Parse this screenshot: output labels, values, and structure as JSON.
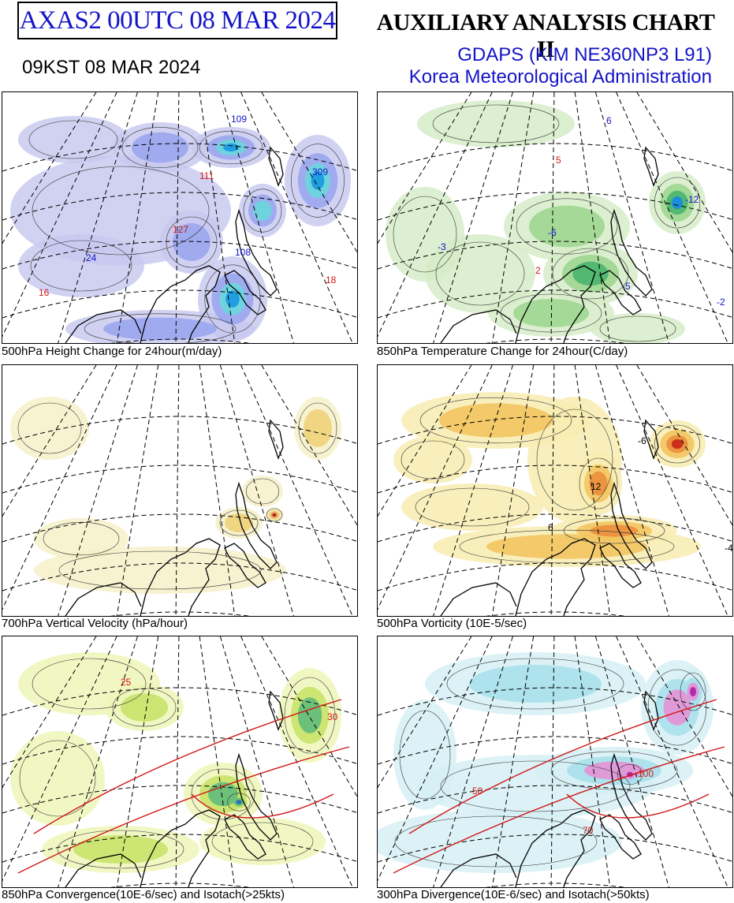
{
  "header": {
    "product": "AXAS2  00UTC 08 MAR 2024",
    "local_time": "09KST 08 MAR 2024",
    "chart_title": "AUXILIARY ANALYSIS CHART II",
    "model": "GDAPS (KIM NE360NP3 L91)",
    "agency": "Korea Meteorological Administration"
  },
  "panels": [
    {
      "id": "height-change",
      "caption": "500hPa Height Change for 24hour(m/day)",
      "palette": [
        "#c9c9f0",
        "#9aa6ee",
        "#6fd3df",
        "#1f9fe0"
      ],
      "labels": [
        {
          "text": "109",
          "color": "#1414c8"
        },
        {
          "text": "309",
          "color": "#1414c8"
        },
        {
          "text": "108",
          "color": "#1414c8"
        },
        {
          "text": "111",
          "color": "#d01818"
        },
        {
          "text": "127",
          "color": "#d01818"
        },
        {
          "text": "16",
          "color": "#d01818"
        },
        {
          "text": "18",
          "color": "#d01818"
        },
        {
          "text": "24",
          "color": "#1414c8"
        }
      ]
    },
    {
      "id": "temp-change",
      "caption": "850hPa Temperature Change for 24hour(C/day)",
      "palette": [
        "#d6ecc8",
        "#9fd690",
        "#52b872",
        "#1a8fd8"
      ],
      "labels": [
        {
          "text": "6",
          "color": "#1414c8"
        },
        {
          "text": "-6",
          "color": "#1414c8"
        },
        {
          "text": "-12",
          "color": "#1414c8"
        },
        {
          "text": "5",
          "color": "#d01818"
        },
        {
          "text": "2",
          "color": "#d01818"
        },
        {
          "text": "-3",
          "color": "#1414c8"
        },
        {
          "text": "-5",
          "color": "#1414c8"
        },
        {
          "text": "-2",
          "color": "#1414c8"
        }
      ]
    },
    {
      "id": "vertical-velocity",
      "caption": "700hPa Vertical Velocity (hPa/hour)",
      "palette": [
        "#f6f0c8",
        "#eed27a",
        "#e59a5a",
        "#b81c1c"
      ],
      "labels": []
    },
    {
      "id": "vorticity",
      "caption": "500hPa Vorticity (10E-5/sec)",
      "palette": [
        "#f8ecb0",
        "#f2c460",
        "#ec9440",
        "#c8301a"
      ],
      "labels": [
        {
          "text": "12",
          "color": "#000000"
        },
        {
          "text": "-6",
          "color": "#000000"
        },
        {
          "text": "6",
          "color": "#000000"
        },
        {
          "text": "-4",
          "color": "#000000"
        }
      ]
    },
    {
      "id": "convergence",
      "caption": "850hPa Convergence(10E-6/sec) and Isotach(>25kts)",
      "palette": [
        "#eef6b8",
        "#c8e26a",
        "#6cc07a",
        "#2d6fb8"
      ],
      "labels": [
        {
          "text": "25",
          "color": "#d01818"
        },
        {
          "text": "30",
          "color": "#d01818"
        }
      ]
    },
    {
      "id": "divergence",
      "caption": "300hPa Divergence(10E-6/sec) and Isotach(>50kts)",
      "palette": [
        "#d6f0f4",
        "#a8e0ec",
        "#e09ad8",
        "#b02ca8"
      ],
      "labels": [
        {
          "text": "100",
          "color": "#d01818"
        },
        {
          "text": "70",
          "color": "#d01818"
        },
        {
          "text": "50",
          "color": "#d01818"
        }
      ]
    }
  ]
}
